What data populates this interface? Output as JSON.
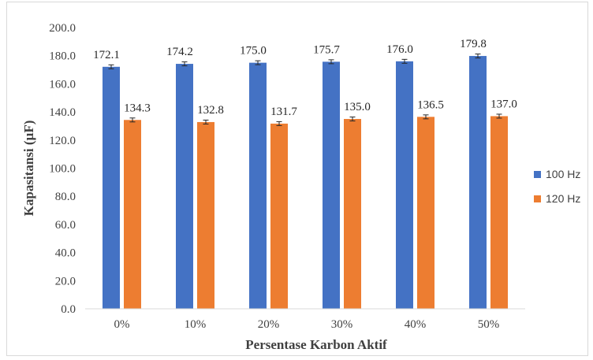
{
  "chart_data": {
    "type": "bar",
    "categories": [
      "0%",
      "10%",
      "20%",
      "30%",
      "40%",
      "50%"
    ],
    "series": [
      {
        "name": "100 Hz",
        "color": "#4472C4",
        "values": [
          172.1,
          174.2,
          175.0,
          175.7,
          176.0,
          179.8
        ],
        "labels": [
          "172.1",
          "174.2",
          "175.0",
          "175.7",
          "176.0",
          "179.8"
        ]
      },
      {
        "name": "120 Hz",
        "color": "#ED7D31",
        "values": [
          134.3,
          132.8,
          131.7,
          135.0,
          136.5,
          137.0
        ],
        "labels": [
          "134.3",
          "132.8",
          "131.7",
          "135.0",
          "136.5",
          "137.0"
        ]
      }
    ],
    "error_bars": true,
    "xlabel": "Persentase Karbon Aktif",
    "ylabel": "Kapasitansi (µF)",
    "ylim": [
      0,
      200
    ],
    "yticks": [
      "0.0",
      "20.0",
      "40.0",
      "60.0",
      "80.0",
      "100.0",
      "120.0",
      "140.0",
      "160.0",
      "180.0",
      "200.0"
    ],
    "grid": false,
    "legend_position": "right"
  }
}
